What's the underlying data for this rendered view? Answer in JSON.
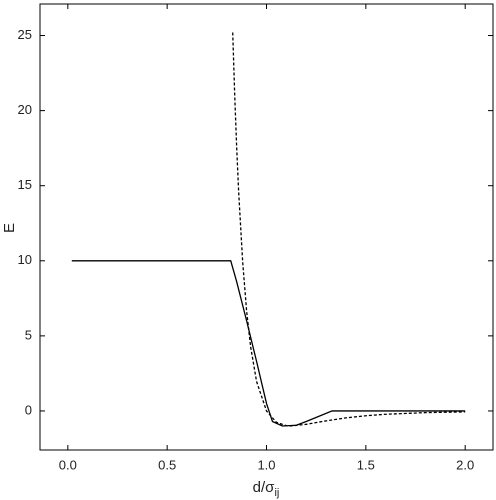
{
  "chart_data": {
    "type": "line",
    "xlabel": "d/σ",
    "xlabel_subscript": "ij",
    "ylabel": "E",
    "xlim": [
      -0.14,
      2.14
    ],
    "ylim": [
      -2.6,
      27.1
    ],
    "xticks": [
      {
        "value": 0,
        "label": "0.0"
      },
      {
        "value": 0.5,
        "label": "0.5"
      },
      {
        "value": 1,
        "label": "1.0"
      },
      {
        "value": 1.5,
        "label": "1.5"
      },
      {
        "value": 2,
        "label": "2.0"
      }
    ],
    "yticks": [
      0,
      5,
      10,
      15,
      20,
      25
    ],
    "grid": false,
    "series": [
      {
        "color": "#000000",
        "dash": "solid",
        "x": [
          0.02,
          0.82,
          0.85,
          0.9,
          0.95,
          1.0,
          1.03,
          1.08,
          1.15,
          1.2,
          1.33,
          2.0
        ],
        "values": [
          10,
          10,
          8.6,
          6,
          3.3,
          0.5,
          -0.7,
          -1,
          -0.95,
          -0.7,
          0,
          0
        ]
      },
      {
        "color": "#000000",
        "dash": "dashed",
        "x": [
          0.83,
          0.84,
          0.85,
          0.86,
          0.88,
          0.9,
          0.92,
          0.95,
          1.0,
          1.05,
          1.1,
          1.122,
          1.2,
          1.3,
          1.4,
          1.5,
          1.6,
          1.8,
          2.0
        ],
        "values": [
          25.2,
          21.03,
          17.51,
          14.56,
          9.93,
          6.64,
          4.28,
          1.96,
          0,
          -0.76,
          -0.98,
          -1,
          -0.89,
          -0.66,
          -0.46,
          -0.32,
          -0.22,
          -0.11,
          -0.06
        ]
      }
    ]
  }
}
